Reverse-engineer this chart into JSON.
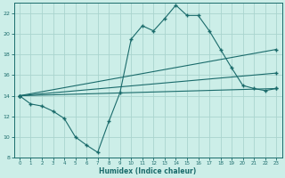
{
  "xlabel": "Humidex (Indice chaleur)",
  "bg_color": "#cceee8",
  "grid_color": "#aad4ce",
  "line_color": "#1a6b6b",
  "xlim": [
    -0.5,
    23.5
  ],
  "ylim": [
    8,
    23
  ],
  "xticks": [
    0,
    1,
    2,
    3,
    4,
    5,
    6,
    7,
    8,
    9,
    10,
    11,
    12,
    13,
    14,
    15,
    16,
    17,
    18,
    19,
    20,
    21,
    22,
    23
  ],
  "yticks": [
    8,
    10,
    12,
    14,
    16,
    18,
    20,
    22
  ],
  "curve1_x": [
    0,
    1,
    2,
    3,
    4,
    5,
    6,
    7,
    8,
    9,
    10,
    11,
    12,
    13,
    14,
    15,
    16,
    17,
    18,
    19,
    20,
    21,
    22,
    23
  ],
  "curve1_y": [
    14.0,
    13.2,
    13.0,
    12.5,
    11.8,
    10.0,
    9.2,
    8.5,
    11.5,
    14.3,
    19.5,
    20.8,
    20.3,
    21.5,
    22.8,
    21.8,
    21.8,
    20.3,
    18.5,
    16.7,
    15.0,
    14.7,
    14.5,
    14.7
  ],
  "line2_x": [
    0,
    23
  ],
  "line2_y": [
    14.0,
    14.7
  ],
  "line3_x": [
    0,
    23
  ],
  "line3_y": [
    14.0,
    16.2
  ],
  "line4_x": [
    0,
    23
  ],
  "line4_y": [
    14.0,
    18.5
  ]
}
